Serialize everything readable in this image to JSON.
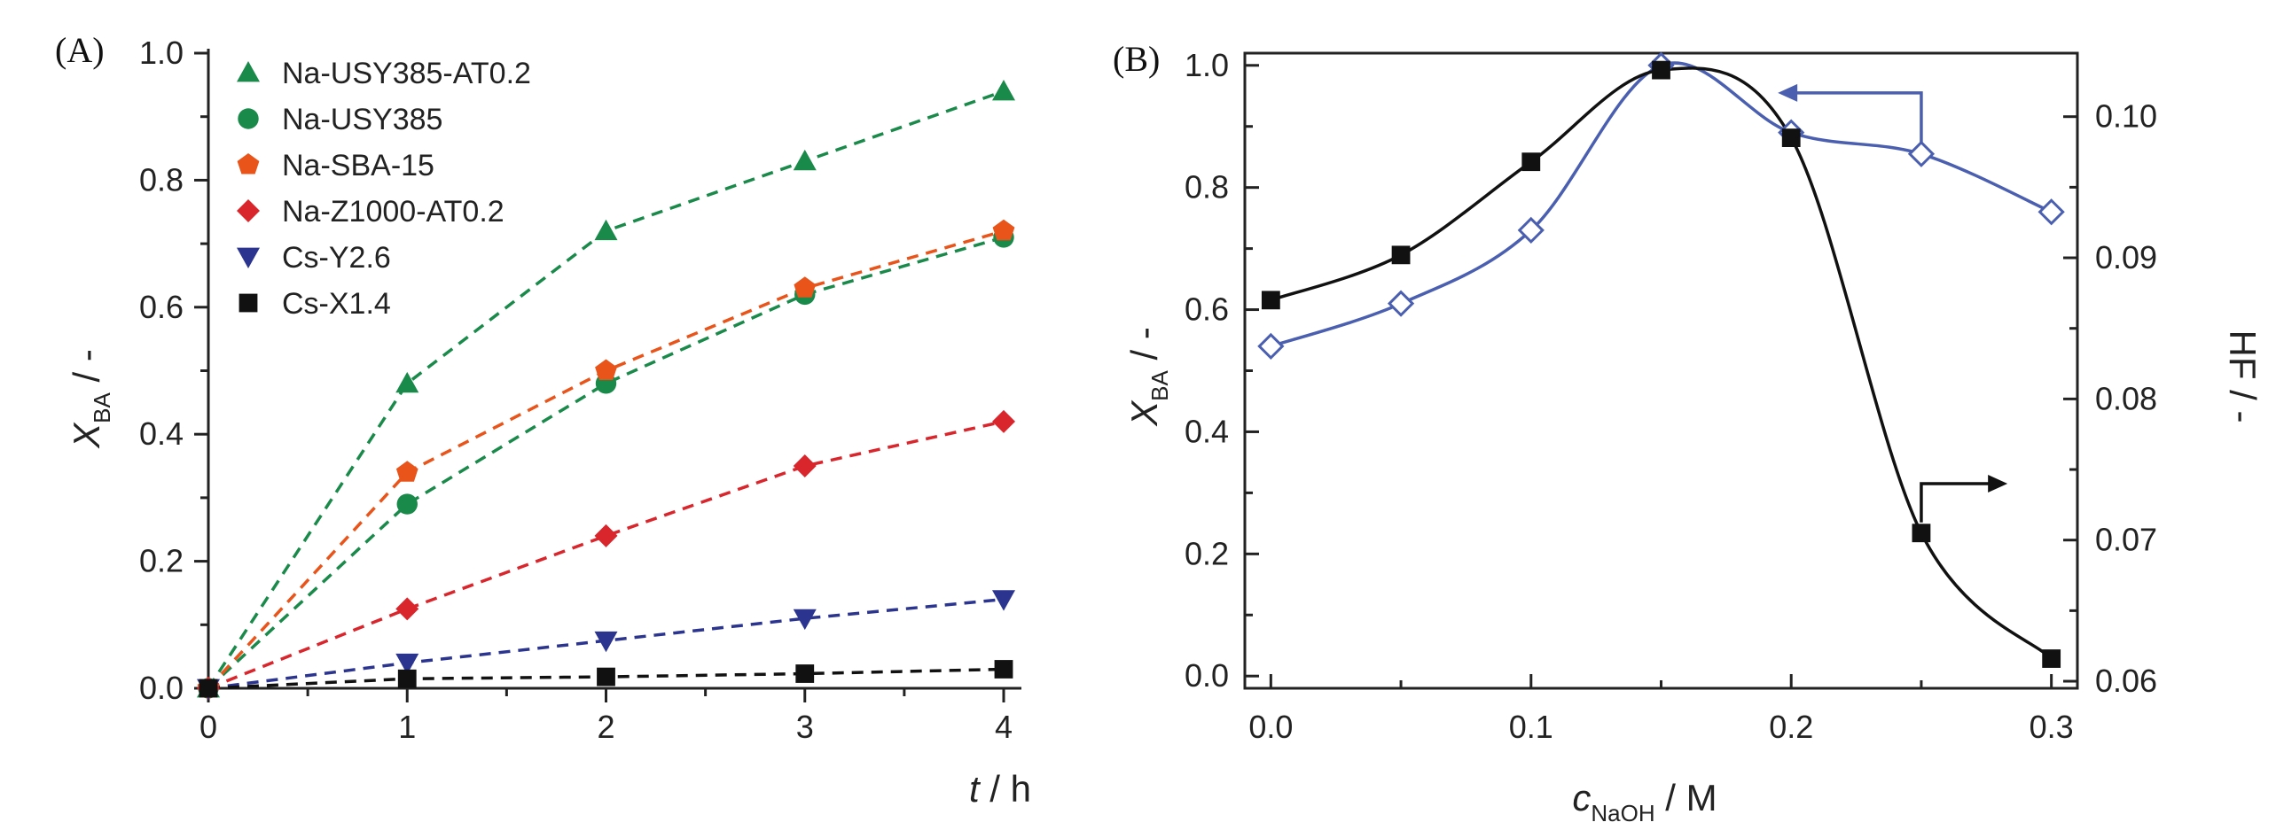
{
  "chart_data": [
    {
      "panel": "(A)",
      "type": "line",
      "xlabel_italic": "t",
      "xlabel_rest": " / h",
      "ylabel_main": "X",
      "ylabel_sub": "BA",
      "ylabel_rest": " / -",
      "xlim": [
        0,
        4
      ],
      "ylim": [
        0,
        1.0
      ],
      "xticks": [
        "0",
        "1",
        "2",
        "3",
        "4"
      ],
      "yticks": [
        "0.0",
        "0.2",
        "0.4",
        "0.6",
        "0.8",
        "1.0"
      ],
      "x": [
        0,
        1,
        2,
        3,
        4
      ],
      "series": [
        {
          "name": "Na-USY385-AT0.2",
          "color": "#1a8a4a",
          "marker": "triangle-up",
          "values": [
            0,
            0.48,
            0.72,
            0.83,
            0.94
          ]
        },
        {
          "name": "Na-USY385",
          "color": "#1a8a4a",
          "marker": "circle",
          "values": [
            0,
            0.29,
            0.48,
            0.62,
            0.71
          ]
        },
        {
          "name": "Na-SBA-15",
          "color": "#e8541a",
          "marker": "pentagon",
          "values": [
            0,
            0.34,
            0.5,
            0.63,
            0.72
          ]
        },
        {
          "name": "Na-Z1000-AT0.2",
          "color": "#d9262c",
          "marker": "diamond",
          "values": [
            0,
            0.125,
            0.24,
            0.35,
            0.42
          ]
        },
        {
          "name": "Cs-Y2.6",
          "color": "#2b3590",
          "marker": "triangle-down",
          "values": [
            0,
            0.04,
            0.075,
            0.11,
            0.14
          ]
        },
        {
          "name": "Cs-X1.4",
          "color": "#111111",
          "marker": "square",
          "values": [
            0,
            0.015,
            0.018,
            0.023,
            0.03
          ]
        }
      ]
    },
    {
      "panel": "(B)",
      "type": "line",
      "xlabel_main": "c",
      "xlabel_sub": "NaOH",
      "xlabel_rest": " / M",
      "ylabel_main": "X",
      "ylabel_sub": "BA",
      "ylabel_rest": " / -",
      "y2label": "HF / -",
      "xlim": [
        -0.01,
        0.31
      ],
      "ylim": [
        -0.02,
        1.02
      ],
      "y2lim": [
        0.0595,
        0.1045
      ],
      "xticks": [
        "0.0",
        "0.1",
        "0.2",
        "0.3"
      ],
      "yticks": [
        "0.0",
        "0.2",
        "0.4",
        "0.6",
        "0.8",
        "1.0"
      ],
      "y2ticks": [
        "0.06",
        "0.07",
        "0.08",
        "0.09",
        "0.10"
      ],
      "x": [
        0,
        0.05,
        0.1,
        0.15,
        0.2,
        0.25,
        0.3
      ],
      "series": [
        {
          "name": "X_BA",
          "axis": "left",
          "color": "#4a5fb0",
          "marker": "open-diamond",
          "values": [
            0.54,
            0.61,
            0.73,
            1.0,
            0.89,
            0.855,
            0.76
          ]
        },
        {
          "name": "HF",
          "axis": "right",
          "color": "#111111",
          "marker": "square",
          "values": [
            0.087,
            0.0902,
            0.0968,
            0.1033,
            0.0985,
            0.0705,
            0.0616
          ]
        }
      ]
    }
  ]
}
